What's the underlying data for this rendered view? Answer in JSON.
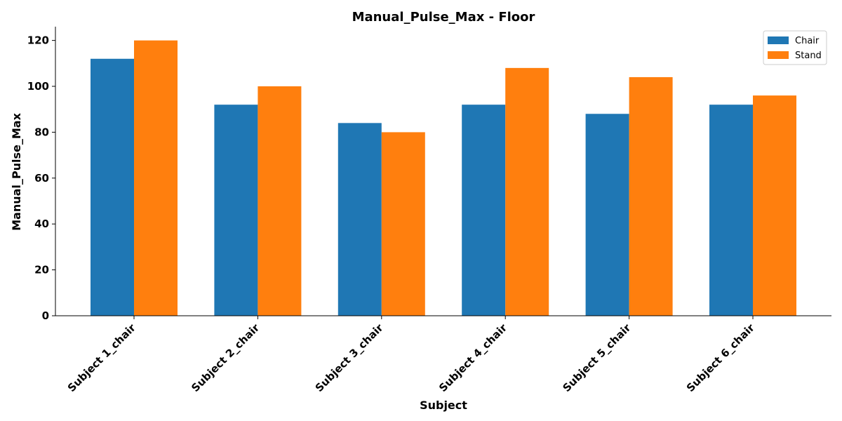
{
  "chart_data": {
    "type": "bar",
    "title": "Manual_Pulse_Max - Floor",
    "xlabel": "Subject",
    "ylabel": "Manual_Pulse_Max",
    "categories": [
      "Subject 1_chair",
      "Subject 2_chair",
      "Subject 3_chair",
      "Subject 4_chair",
      "Subject 5_chair",
      "Subject 6_chair"
    ],
    "series": [
      {
        "name": "Chair",
        "color": "#1f77b4",
        "values": [
          112,
          92,
          84,
          92,
          88,
          92
        ]
      },
      {
        "name": "Stand",
        "color": "#ff7f0e",
        "values": [
          120,
          100,
          80,
          108,
          104,
          96
        ]
      }
    ],
    "ylim": [
      0,
      126
    ],
    "yticks": [
      0,
      20,
      40,
      60,
      80,
      100,
      120
    ],
    "grid": false,
    "legend_position": "top-right"
  }
}
